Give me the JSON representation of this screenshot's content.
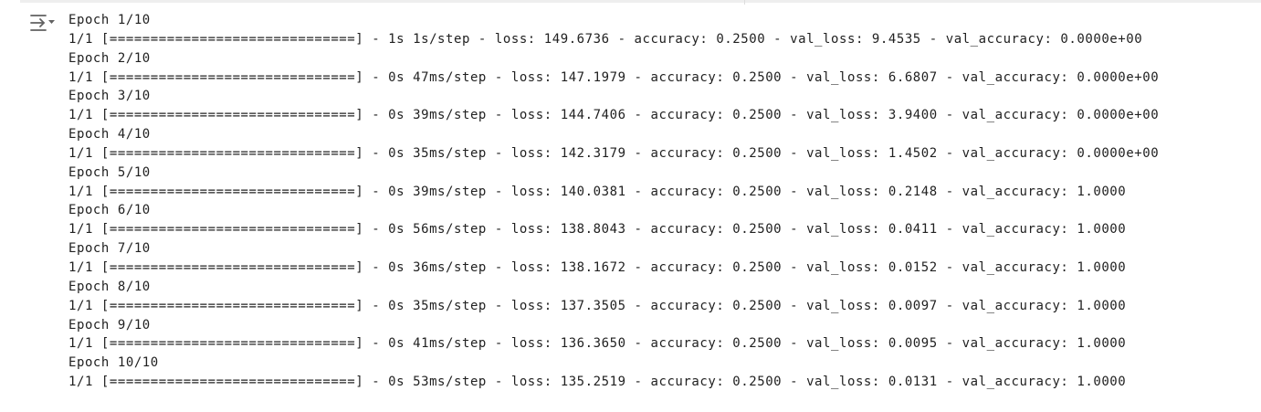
{
  "output": {
    "toggle_icon": "output-collapse-icon",
    "lines": [
      "Epoch 1/10",
      "1/1 [==============================] - 1s 1s/step - loss: 149.6736 - accuracy: 0.2500 - val_loss: 9.4535 - val_accuracy: 0.0000e+00",
      "Epoch 2/10",
      "1/1 [==============================] - 0s 47ms/step - loss: 147.1979 - accuracy: 0.2500 - val_loss: 6.6807 - val_accuracy: 0.0000e+00",
      "Epoch 3/10",
      "1/1 [==============================] - 0s 39ms/step - loss: 144.7406 - accuracy: 0.2500 - val_loss: 3.9400 - val_accuracy: 0.0000e+00",
      "Epoch 4/10",
      "1/1 [==============================] - 0s 35ms/step - loss: 142.3179 - accuracy: 0.2500 - val_loss: 1.4502 - val_accuracy: 0.0000e+00",
      "Epoch 5/10",
      "1/1 [==============================] - 0s 39ms/step - loss: 140.0381 - accuracy: 0.2500 - val_loss: 0.2148 - val_accuracy: 1.0000",
      "Epoch 6/10",
      "1/1 [==============================] - 0s 56ms/step - loss: 138.8043 - accuracy: 0.2500 - val_loss: 0.0411 - val_accuracy: 1.0000",
      "Epoch 7/10",
      "1/1 [==============================] - 0s 36ms/step - loss: 138.1672 - accuracy: 0.2500 - val_loss: 0.0152 - val_accuracy: 1.0000",
      "Epoch 8/10",
      "1/1 [==============================] - 0s 35ms/step - loss: 137.3505 - accuracy: 0.2500 - val_loss: 0.0097 - val_accuracy: 1.0000",
      "Epoch 9/10",
      "1/1 [==============================] - 0s 41ms/step - loss: 136.3650 - accuracy: 0.2500 - val_loss: 0.0095 - val_accuracy: 1.0000",
      "Epoch 10/10",
      "1/1 [==============================] - 0s 53ms/step - loss: 135.2519 - accuracy: 0.2500 - val_loss: 0.0131 - val_accuracy: 1.0000"
    ]
  },
  "colors": {
    "text": "#212121",
    "icon": "#616161",
    "background": "#ffffff"
  }
}
